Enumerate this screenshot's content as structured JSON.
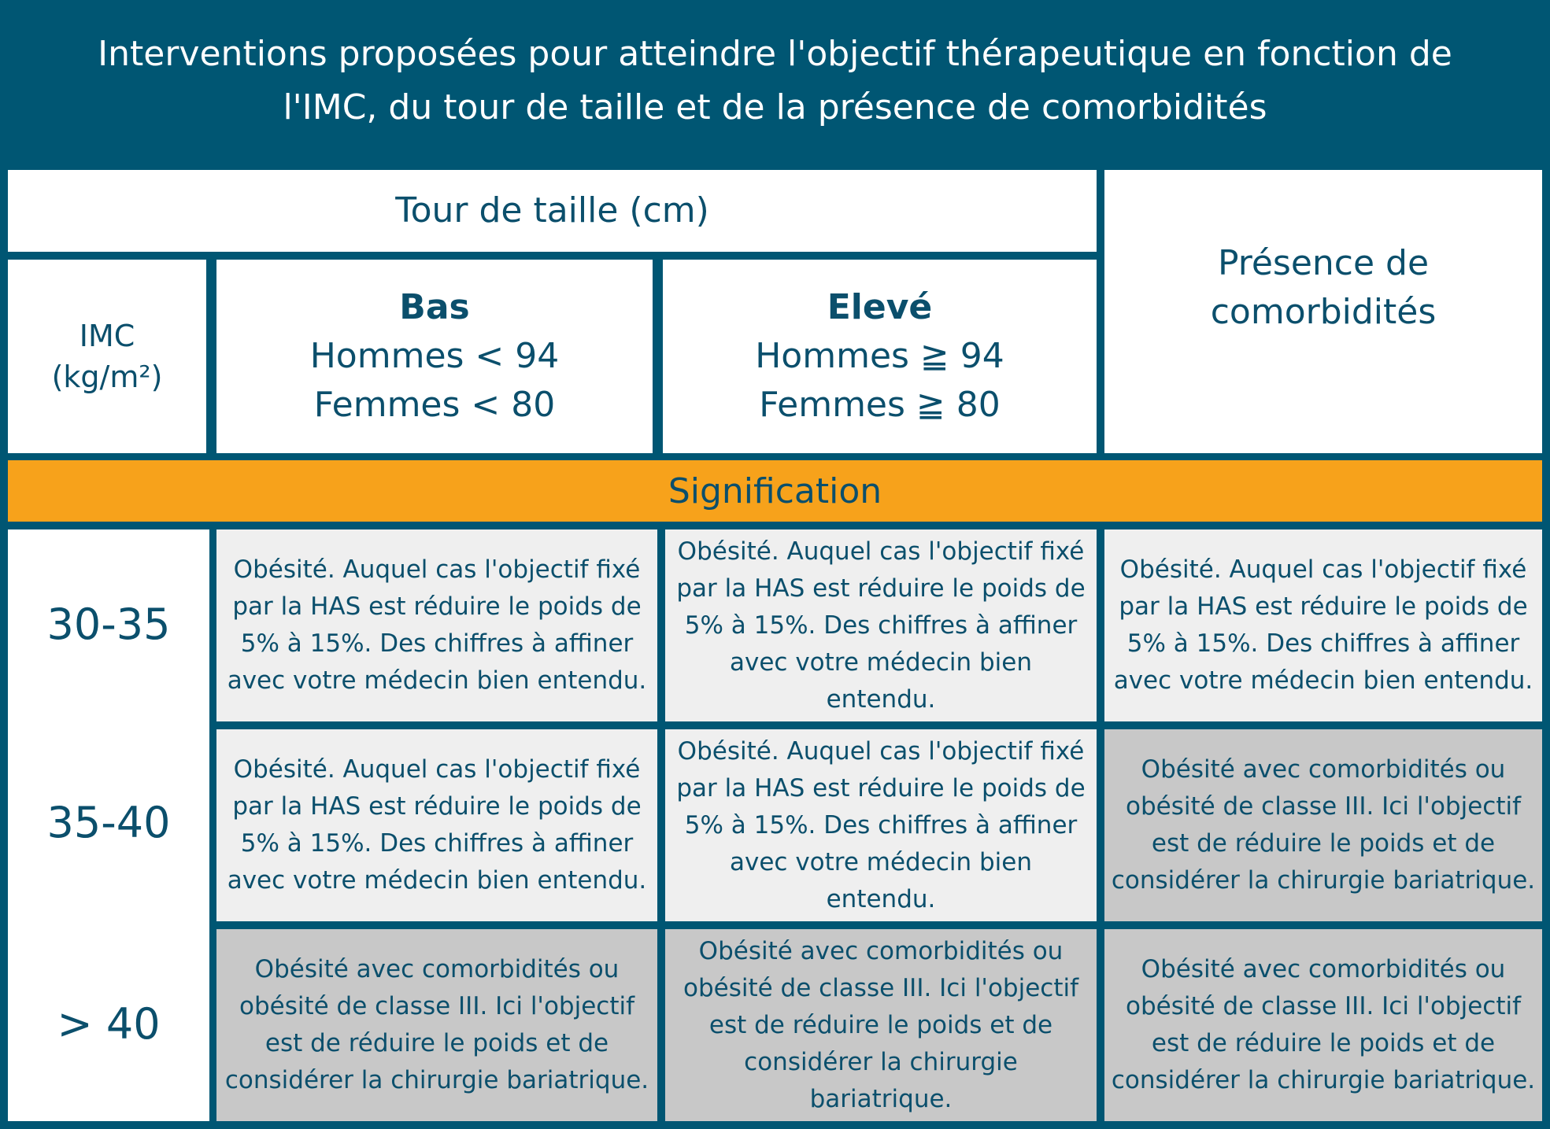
{
  "title": "Interventions proposées pour atteindre l'objectif thérapeutique en fonction de l'IMC, du tour de taille et de la présence de comorbidités",
  "header": {
    "tour_de_taille": "Tour de taille (cm)",
    "imc_line1": "IMC",
    "imc_line2": "(kg/m²)",
    "bas": {
      "title": "Bas",
      "hommes": "Hommes < 94",
      "femmes": "Femmes < 80"
    },
    "eleve": {
      "title": "Elevé",
      "hommes": "Hommes ≧ 94",
      "femmes": "Femmes ≧ 80"
    },
    "comorbidites_line1": "Présence de",
    "comorbidites_line2": "comorbidités"
  },
  "band": "Signification",
  "rows": [
    {
      "label": "30-35",
      "cells": [
        {
          "shade": "light",
          "lines": [
            "Obésité. Auquel cas l'objectif fixé",
            "par la HAS est réduire le poids de",
            "5% à 15%. Des chiffres à affiner",
            "avec votre médecin bien entendu."
          ]
        },
        {
          "shade": "light",
          "lines": [
            "Obésité. Auquel cas l'objectif fixé",
            "par la HAS est réduire le poids de",
            "5% à 15%. Des chiffres à affiner",
            "avec votre médecin bien entendu."
          ]
        },
        {
          "shade": "light",
          "lines": [
            "Obésité. Auquel cas l'objectif fixé",
            "par la HAS est réduire le poids de",
            "5% à 15%. Des chiffres à affiner",
            "avec votre médecin bien entendu."
          ]
        }
      ]
    },
    {
      "label": "35-40",
      "cells": [
        {
          "shade": "light",
          "lines": [
            "Obésité. Auquel cas l'objectif fixé",
            "par la HAS est réduire le poids de",
            "5% à 15%. Des chiffres à affiner",
            "avec votre médecin bien entendu."
          ]
        },
        {
          "shade": "light",
          "lines": [
            "Obésité. Auquel cas l'objectif fixé",
            "par la HAS est réduire le poids de",
            "5% à 15%. Des chiffres à affiner",
            "avec votre médecin bien entendu."
          ]
        },
        {
          "shade": "dark",
          "lines": [
            "Obésité avec comorbidités ou",
            "obésité de classe III. Ici l'objectif",
            "est de réduire le poids et de",
            "considérer la chirurgie bariatrique."
          ]
        }
      ]
    },
    {
      "label": "> 40",
      "cells": [
        {
          "shade": "dark",
          "lines": [
            "Obésité avec comorbidités ou",
            "obésité de classe III. Ici l'objectif",
            "est de réduire le poids et de",
            "considérer la chirurgie bariatrique."
          ]
        },
        {
          "shade": "dark",
          "lines": [
            "Obésité avec comorbidités ou",
            "obésité de classe III. Ici l'objectif",
            "est de réduire le poids et de",
            "considérer la chirurgie bariatrique."
          ]
        },
        {
          "shade": "dark",
          "lines": [
            "Obésité avec comorbidités ou",
            "obésité de classe III. Ici l'objectif",
            "est de réduire le poids et de",
            "considérer la chirurgie bariatrique."
          ]
        }
      ]
    }
  ],
  "colors": {
    "background": "#005673",
    "band": "#f7a21b",
    "light_cell": "#efefef",
    "dark_cell": "#c8c8c8",
    "text": "#0b4f6c"
  }
}
